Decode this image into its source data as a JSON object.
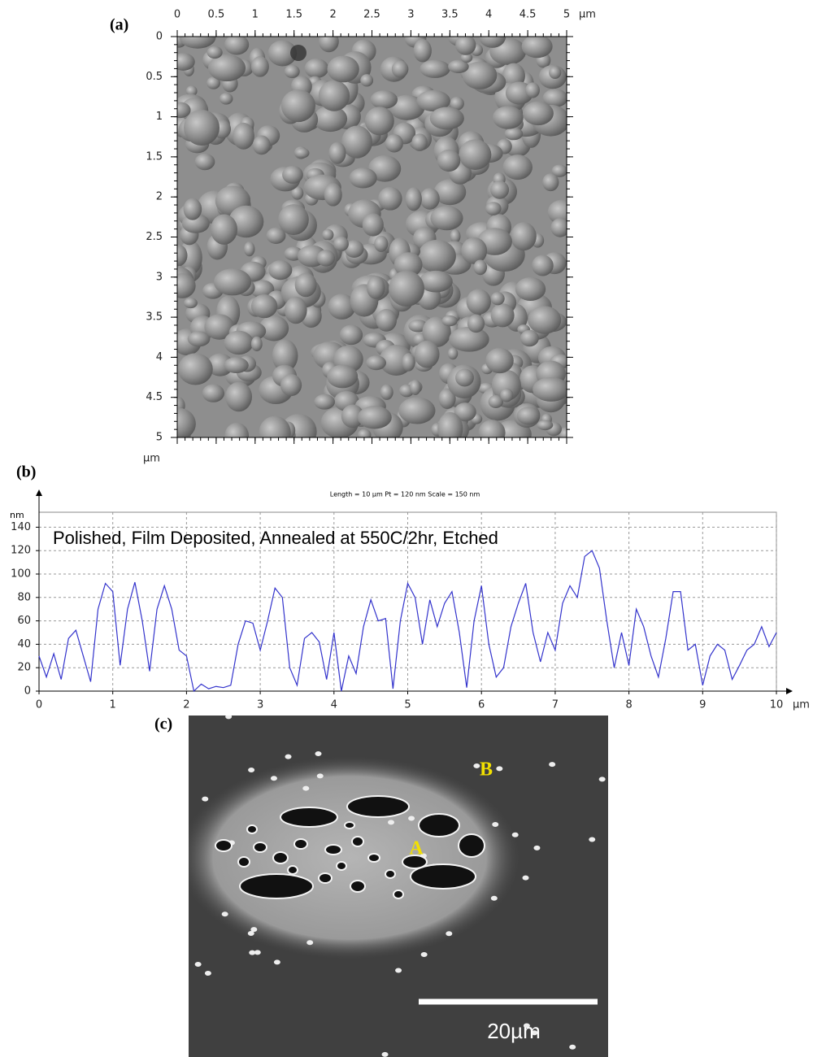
{
  "chart_data": [
    {
      "type": "image",
      "label": "(a)",
      "x_unit": "µm",
      "y_unit": "µm",
      "xlim": [
        0,
        5
      ],
      "xticks": [
        0,
        0.5,
        1,
        1.5,
        2,
        2.5,
        3,
        3.5,
        4,
        4.5,
        5
      ],
      "ylim": [
        0,
        5
      ],
      "yticks": [
        0,
        0.5,
        1,
        1.5,
        2,
        2.5,
        3,
        3.5,
        4,
        4.5,
        5
      ]
    },
    {
      "type": "line",
      "label": "(b)",
      "title": "Polished, Film Deposited, Annealed at 550C/2hr,  Etched",
      "subtitle": "Length = 10 µm  Pt = 120 nm  Scale = 150 nm",
      "x_unit": "µm",
      "y_unit": "nm",
      "color": "#3333cc",
      "grid": true,
      "xlim": [
        0,
        10
      ],
      "xticks": [
        0,
        1,
        2,
        3,
        4,
        5,
        6,
        7,
        8,
        9,
        10
      ],
      "ylim": [
        0,
        150
      ],
      "yticks": [
        0,
        20,
        40,
        60,
        80,
        100,
        120,
        140
      ],
      "x": [
        0,
        0.1,
        0.2,
        0.3,
        0.4,
        0.5,
        0.6,
        0.7,
        0.8,
        0.9,
        1.0,
        1.1,
        1.2,
        1.3,
        1.4,
        1.5,
        1.6,
        1.7,
        1.8,
        1.9,
        2.0,
        2.1,
        2.2,
        2.3,
        2.4,
        2.5,
        2.6,
        2.7,
        2.8,
        2.9,
        3.0,
        3.1,
        3.2,
        3.3,
        3.4,
        3.5,
        3.6,
        3.7,
        3.8,
        3.9,
        4.0,
        4.1,
        4.2,
        4.3,
        4.4,
        4.5,
        4.6,
        4.7,
        4.8,
        4.9,
        5.0,
        5.1,
        5.2,
        5.3,
        5.4,
        5.5,
        5.6,
        5.7,
        5.8,
        5.9,
        6.0,
        6.1,
        6.2,
        6.3,
        6.4,
        6.5,
        6.6,
        6.7,
        6.8,
        6.9,
        7.0,
        7.1,
        7.2,
        7.3,
        7.4,
        7.5,
        7.6,
        7.7,
        7.8,
        7.9,
        8.0,
        8.1,
        8.2,
        8.3,
        8.4,
        8.5,
        8.6,
        8.7,
        8.8,
        8.9,
        9.0,
        9.1,
        9.2,
        9.3,
        9.4,
        9.5,
        9.6,
        9.7,
        9.8,
        9.9,
        10.0
      ],
      "values": [
        30,
        12,
        32,
        10,
        45,
        52,
        30,
        8,
        70,
        92,
        85,
        22,
        70,
        93,
        60,
        17,
        70,
        90,
        70,
        35,
        30,
        0,
        6,
        2,
        4,
        3,
        5,
        40,
        60,
        58,
        35,
        60,
        88,
        80,
        20,
        5,
        45,
        50,
        42,
        10,
        50,
        0,
        30,
        15,
        55,
        78,
        60,
        62,
        2,
        60,
        92,
        80,
        40,
        78,
        55,
        75,
        85,
        50,
        3,
        60,
        90,
        40,
        12,
        20,
        55,
        75,
        92,
        50,
        25,
        50,
        35,
        75,
        90,
        80,
        115,
        120,
        105,
        60,
        20,
        50,
        22,
        70,
        55,
        30,
        12,
        45,
        85,
        85,
        35,
        40,
        5,
        30,
        40,
        35,
        10,
        22,
        35,
        40,
        55,
        38,
        50
      ]
    },
    {
      "type": "micrograph",
      "label": "(c)",
      "annotations": [
        "A",
        "B"
      ],
      "scale_bar_label": "20µm"
    }
  ]
}
